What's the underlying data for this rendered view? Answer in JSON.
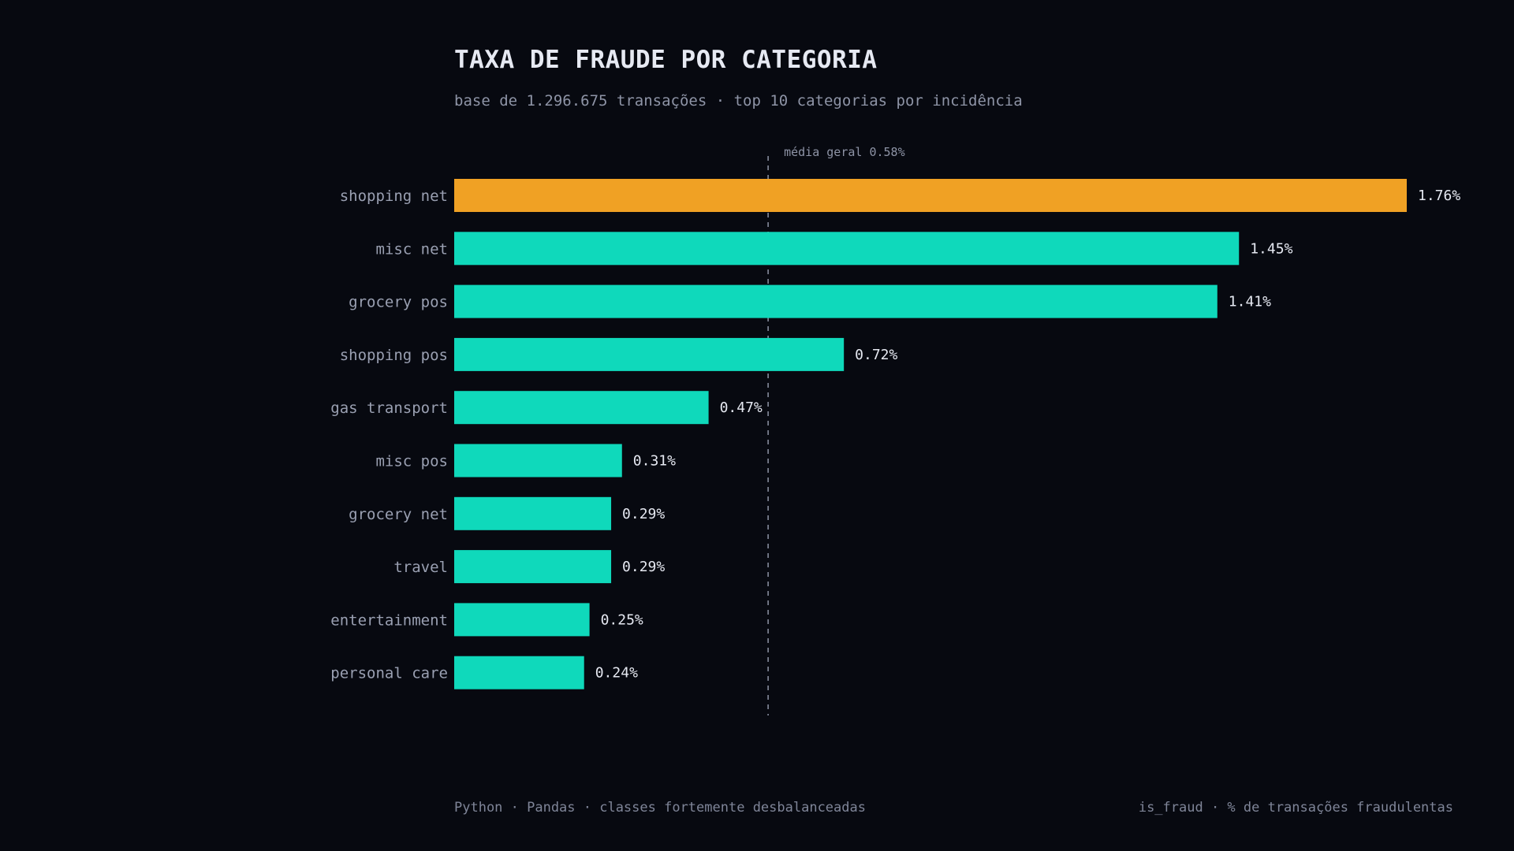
{
  "chart_data": {
    "type": "bar",
    "orientation": "horizontal",
    "title": "TAXA DE FRAUDE POR CATEGORIA",
    "subtitle": "base de 1.296.675 transações · top 10 categorias por incidência",
    "categories": [
      "shopping net",
      "misc net",
      "grocery pos",
      "shopping pos",
      "gas transport",
      "misc pos",
      "grocery net",
      "travel",
      "entertainment",
      "personal care"
    ],
    "values": [
      1.76,
      1.45,
      1.41,
      0.72,
      0.47,
      0.31,
      0.29,
      0.29,
      0.25,
      0.24
    ],
    "value_labels": [
      "1.76%",
      "1.45%",
      "1.41%",
      "0.72%",
      "0.47%",
      "0.31%",
      "0.29%",
      "0.29%",
      "0.25%",
      "0.24%"
    ],
    "highlight_index": 0,
    "reference_line": {
      "value": 0.58,
      "label": "média geral 0.58%"
    },
    "xlim": [
      0,
      1.76
    ],
    "grid": false,
    "colors": {
      "background": "#070910",
      "bar": "#0fd9bb",
      "highlight": "#f0a124",
      "reference_line": "#8e94a6"
    }
  },
  "footer": {
    "left": "Python · Pandas · classes fortemente desbalanceadas",
    "right": "is_fraud · % de transações fraudulentas"
  }
}
